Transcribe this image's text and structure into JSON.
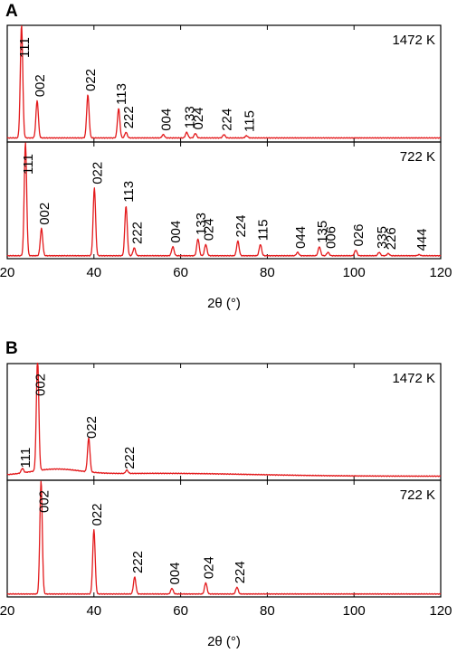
{
  "figure": {
    "panels": [
      {
        "letter": "A"
      },
      {
        "letter": "B"
      }
    ]
  },
  "chart_data": [
    {
      "type": "line",
      "panel": "A",
      "subplot": "upper",
      "temperature_label": "1472 K",
      "xlabel": "2θ (°)",
      "xlim": [
        20,
        120
      ],
      "xticks": [
        20,
        40,
        60,
        80,
        100,
        120
      ],
      "baseline": 0.02,
      "series_color": "#e31a1c",
      "peaks": [
        {
          "label": "111",
          "x": 23.3,
          "height": 1.0
        },
        {
          "label": "002",
          "x": 26.9,
          "height": 0.33
        },
        {
          "label": "022",
          "x": 38.6,
          "height": 0.38
        },
        {
          "label": "113",
          "x": 45.7,
          "height": 0.26
        },
        {
          "label": "222",
          "x": 47.4,
          "height": 0.05
        },
        {
          "label": "004",
          "x": 56.0,
          "height": 0.03
        },
        {
          "label": "133",
          "x": 61.4,
          "height": 0.05
        },
        {
          "label": "024",
          "x": 63.4,
          "height": 0.04
        },
        {
          "label": "224",
          "x": 70.0,
          "height": 0.03
        },
        {
          "label": "115",
          "x": 75.2,
          "height": 0.02
        }
      ]
    },
    {
      "type": "line",
      "panel": "A",
      "subplot": "lower",
      "temperature_label": "722 K",
      "xlabel": "2θ (°)",
      "xlim": [
        20,
        120
      ],
      "xticks": [
        20,
        40,
        60,
        80,
        100,
        120
      ],
      "baseline": 0.01,
      "series_color": "#e31a1c",
      "peaks": [
        {
          "label": "111",
          "x": 24.2,
          "height": 1.0
        },
        {
          "label": "002",
          "x": 27.9,
          "height": 0.24
        },
        {
          "label": "022",
          "x": 40.1,
          "height": 0.6
        },
        {
          "label": "113",
          "x": 47.4,
          "height": 0.44
        },
        {
          "label": "222",
          "x": 49.3,
          "height": 0.07
        },
        {
          "label": "004",
          "x": 58.2,
          "height": 0.08
        },
        {
          "label": "133",
          "x": 64.0,
          "height": 0.15
        },
        {
          "label": "024",
          "x": 65.8,
          "height": 0.1
        },
        {
          "label": "224",
          "x": 73.2,
          "height": 0.13
        },
        {
          "label": "115",
          "x": 78.4,
          "height": 0.1
        },
        {
          "label": "044",
          "x": 87.0,
          "height": 0.03
        },
        {
          "label": "135",
          "x": 92.0,
          "height": 0.08
        },
        {
          "label": "006",
          "x": 94.0,
          "height": 0.03
        },
        {
          "label": "026",
          "x": 100.4,
          "height": 0.05
        },
        {
          "label": "335",
          "x": 105.8,
          "height": 0.03
        },
        {
          "label": "226",
          "x": 107.9,
          "height": 0.02
        },
        {
          "label": "444",
          "x": 115.0,
          "height": 0.01
        }
      ]
    },
    {
      "type": "line",
      "panel": "B",
      "subplot": "upper",
      "temperature_label": "1472 K",
      "xlabel": "2θ (°)",
      "xlim": [
        20,
        120
      ],
      "xticks": [
        20,
        40,
        60,
        80,
        100,
        120
      ],
      "baseline": 0.02,
      "broad_hump": {
        "center": 31,
        "amplitude": 0.05,
        "width": 8
      },
      "series_color": "#e31a1c",
      "peaks": [
        {
          "label": "111",
          "x": 23.5,
          "height": 0.04
        },
        {
          "label": "002",
          "x": 27.0,
          "height": 1.0
        },
        {
          "label": "022",
          "x": 38.8,
          "height": 0.3
        },
        {
          "label": "222",
          "x": 47.6,
          "height": 0.03
        }
      ]
    },
    {
      "type": "line",
      "panel": "B",
      "subplot": "lower",
      "temperature_label": "722 K",
      "xlabel": "2θ (°)",
      "xlim": [
        20,
        120
      ],
      "xticks": [
        20,
        40,
        60,
        80,
        100,
        120
      ],
      "baseline": 0.01,
      "series_color": "#e31a1c",
      "peaks": [
        {
          "label": "002",
          "x": 27.8,
          "height": 1.0
        },
        {
          "label": "022",
          "x": 40.0,
          "height": 0.57
        },
        {
          "label": "222",
          "x": 49.4,
          "height": 0.15
        },
        {
          "label": "004",
          "x": 58.0,
          "height": 0.05
        },
        {
          "label": "024",
          "x": 65.8,
          "height": 0.1
        },
        {
          "label": "224",
          "x": 73.0,
          "height": 0.06
        }
      ]
    }
  ]
}
